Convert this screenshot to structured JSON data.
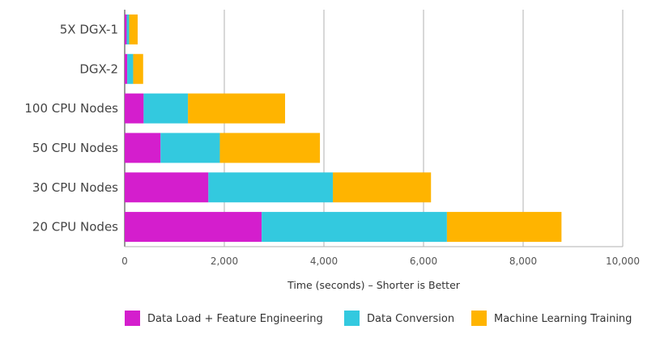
{
  "chart_data": {
    "type": "bar",
    "orientation": "horizontal",
    "stacked": true,
    "categories": [
      "5X DGX-1",
      "DGX-2",
      "100 CPU Nodes",
      "50 CPU Nodes",
      "30 CPU Nodes",
      "20 CPU Nodes"
    ],
    "series": [
      {
        "name": "Data Load + Feature Engineering",
        "color": "#d41ecd",
        "values": [
          40,
          50,
          380,
          720,
          1680,
          2750
        ]
      },
      {
        "name": "Data Conversion",
        "color": "#33c9df",
        "values": [
          50,
          120,
          890,
          1190,
          2500,
          3720
        ]
      },
      {
        "name": "Machine Learning Training",
        "color": "#ffb400",
        "values": [
          170,
          200,
          1950,
          2010,
          1970,
          2300
        ]
      }
    ],
    "xlabel": "Time (seconds) – Shorter is Better",
    "ylabel": "",
    "xlim": [
      0,
      10000
    ],
    "xticks": [
      0,
      2000,
      4000,
      6000,
      8000,
      10000
    ],
    "xtick_labels": [
      "0",
      "2,000",
      "4,000",
      "6,000",
      "8,000",
      "10,000"
    ],
    "grid": true,
    "legend_position": "bottom"
  }
}
